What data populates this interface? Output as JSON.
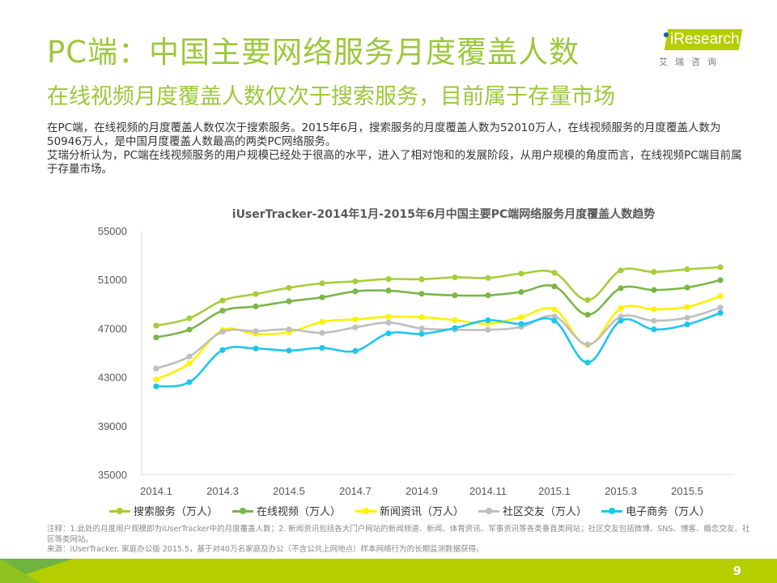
{
  "header": {
    "title": "PC端：中国主要网络服务月度覆盖人数",
    "subtitle": "在线视频月度覆盖人数仅次于搜索服务，目前属于存量市场"
  },
  "logo": {
    "brand": "iResearch",
    "cn": "艾瑞咨询",
    "color": "#B5CE00"
  },
  "body": {
    "paragraph1": "在PC端，在线视频的月度覆盖人数仅次于搜索服务。2015年6月，搜索服务的月度覆盖人数为52010万人，在线视频服务的月度覆盖人数为50946万人，是中国月度覆盖人数最高的两类PC网络服务。",
    "paragraph2": "艾瑞分析认为，PC端在线视频服务的用户规模已经处于很高的水平，进入了相对饱和的发展阶段，从用户规模的角度而言，在线视频PC端目前属于存量市场。"
  },
  "chart_data": {
    "type": "line",
    "title": "iUserTracker-2014年1月-2015年6月中国主要PC端网络服务月度覆盖人数趋势",
    "xlabel": "",
    "ylabel": "",
    "ylim": [
      35000,
      55000
    ],
    "yticks": [
      "55000",
      "51000",
      "47000",
      "43000",
      "39000",
      "35000"
    ],
    "ytick_values": [
      55000,
      51000,
      47000,
      43000,
      39000,
      35000
    ],
    "x": [
      "2014.1",
      "2014.2",
      "2014.3",
      "2014.4",
      "2014.5",
      "2014.6",
      "2014.7",
      "2014.8",
      "2014.9",
      "2014.10",
      "2014.11",
      "2014.12",
      "2015.1",
      "2015.2",
      "2015.3",
      "2015.4",
      "2015.5",
      "2015.6"
    ],
    "xtick_labels": [
      "2014.1",
      "2014.3",
      "2014.5",
      "2014.7",
      "2014.9",
      "2014.11",
      "2015.1",
      "2015.3",
      "2015.5"
    ],
    "xtick_indices": [
      0,
      2,
      4,
      6,
      8,
      10,
      12,
      14,
      16
    ],
    "grid": false,
    "legend_position": "bottom",
    "series": [
      {
        "name": "搜索服务（万人）",
        "color": "#A6CE39",
        "values": [
          47220,
          47820,
          49280,
          49810,
          50320,
          50690,
          50850,
          51040,
          51020,
          51180,
          51130,
          51490,
          51550,
          49320,
          51750,
          51620,
          51840,
          52010
        ]
      },
      {
        "name": "在线视频（万人）",
        "color": "#7AB648",
        "values": [
          46250,
          46890,
          48440,
          48790,
          49210,
          49540,
          50030,
          50090,
          49830,
          49700,
          49700,
          49980,
          50430,
          48110,
          50290,
          50140,
          50340,
          50946
        ]
      },
      {
        "name": "新闻资讯（万人）",
        "color": "#FFF100",
        "values": [
          42800,
          44130,
          46850,
          46540,
          46670,
          47530,
          47730,
          47950,
          47910,
          47660,
          47380,
          47910,
          48550,
          45610,
          48640,
          48550,
          48750,
          49630
        ]
      },
      {
        "name": "社区交友（万人）",
        "color": "#BFBFBF",
        "values": [
          43690,
          44680,
          46710,
          46760,
          46910,
          46620,
          47070,
          47460,
          46980,
          46890,
          46870,
          47110,
          47970,
          45670,
          47950,
          47620,
          47860,
          48700
        ]
      },
      {
        "name": "电子商务（万人）",
        "color": "#1EC6EE",
        "values": [
          42230,
          42580,
          45210,
          45340,
          45170,
          45390,
          45140,
          46580,
          46540,
          47020,
          47660,
          47350,
          47620,
          44190,
          47620,
          46910,
          47310,
          48260
        ]
      }
    ]
  },
  "notes": {
    "note1": "注释：1.此处的月度用户规模即为iUserTracker中的月度覆盖人数；2. 新闻资讯包括各大门户网站的新闻频道、新闻、体育资讯、军事资讯等各类垂直类网站；社区交友包括微博、SNS、博客、婚恋交友、社区等类网站。",
    "source": "来源：iUserTracker. 家庭办公版 2015.5，基于对40万名家庭及办公（不含公共上网地点）样本网络行为的长期监测数据获得。"
  },
  "footer": {
    "page_number": "9"
  }
}
